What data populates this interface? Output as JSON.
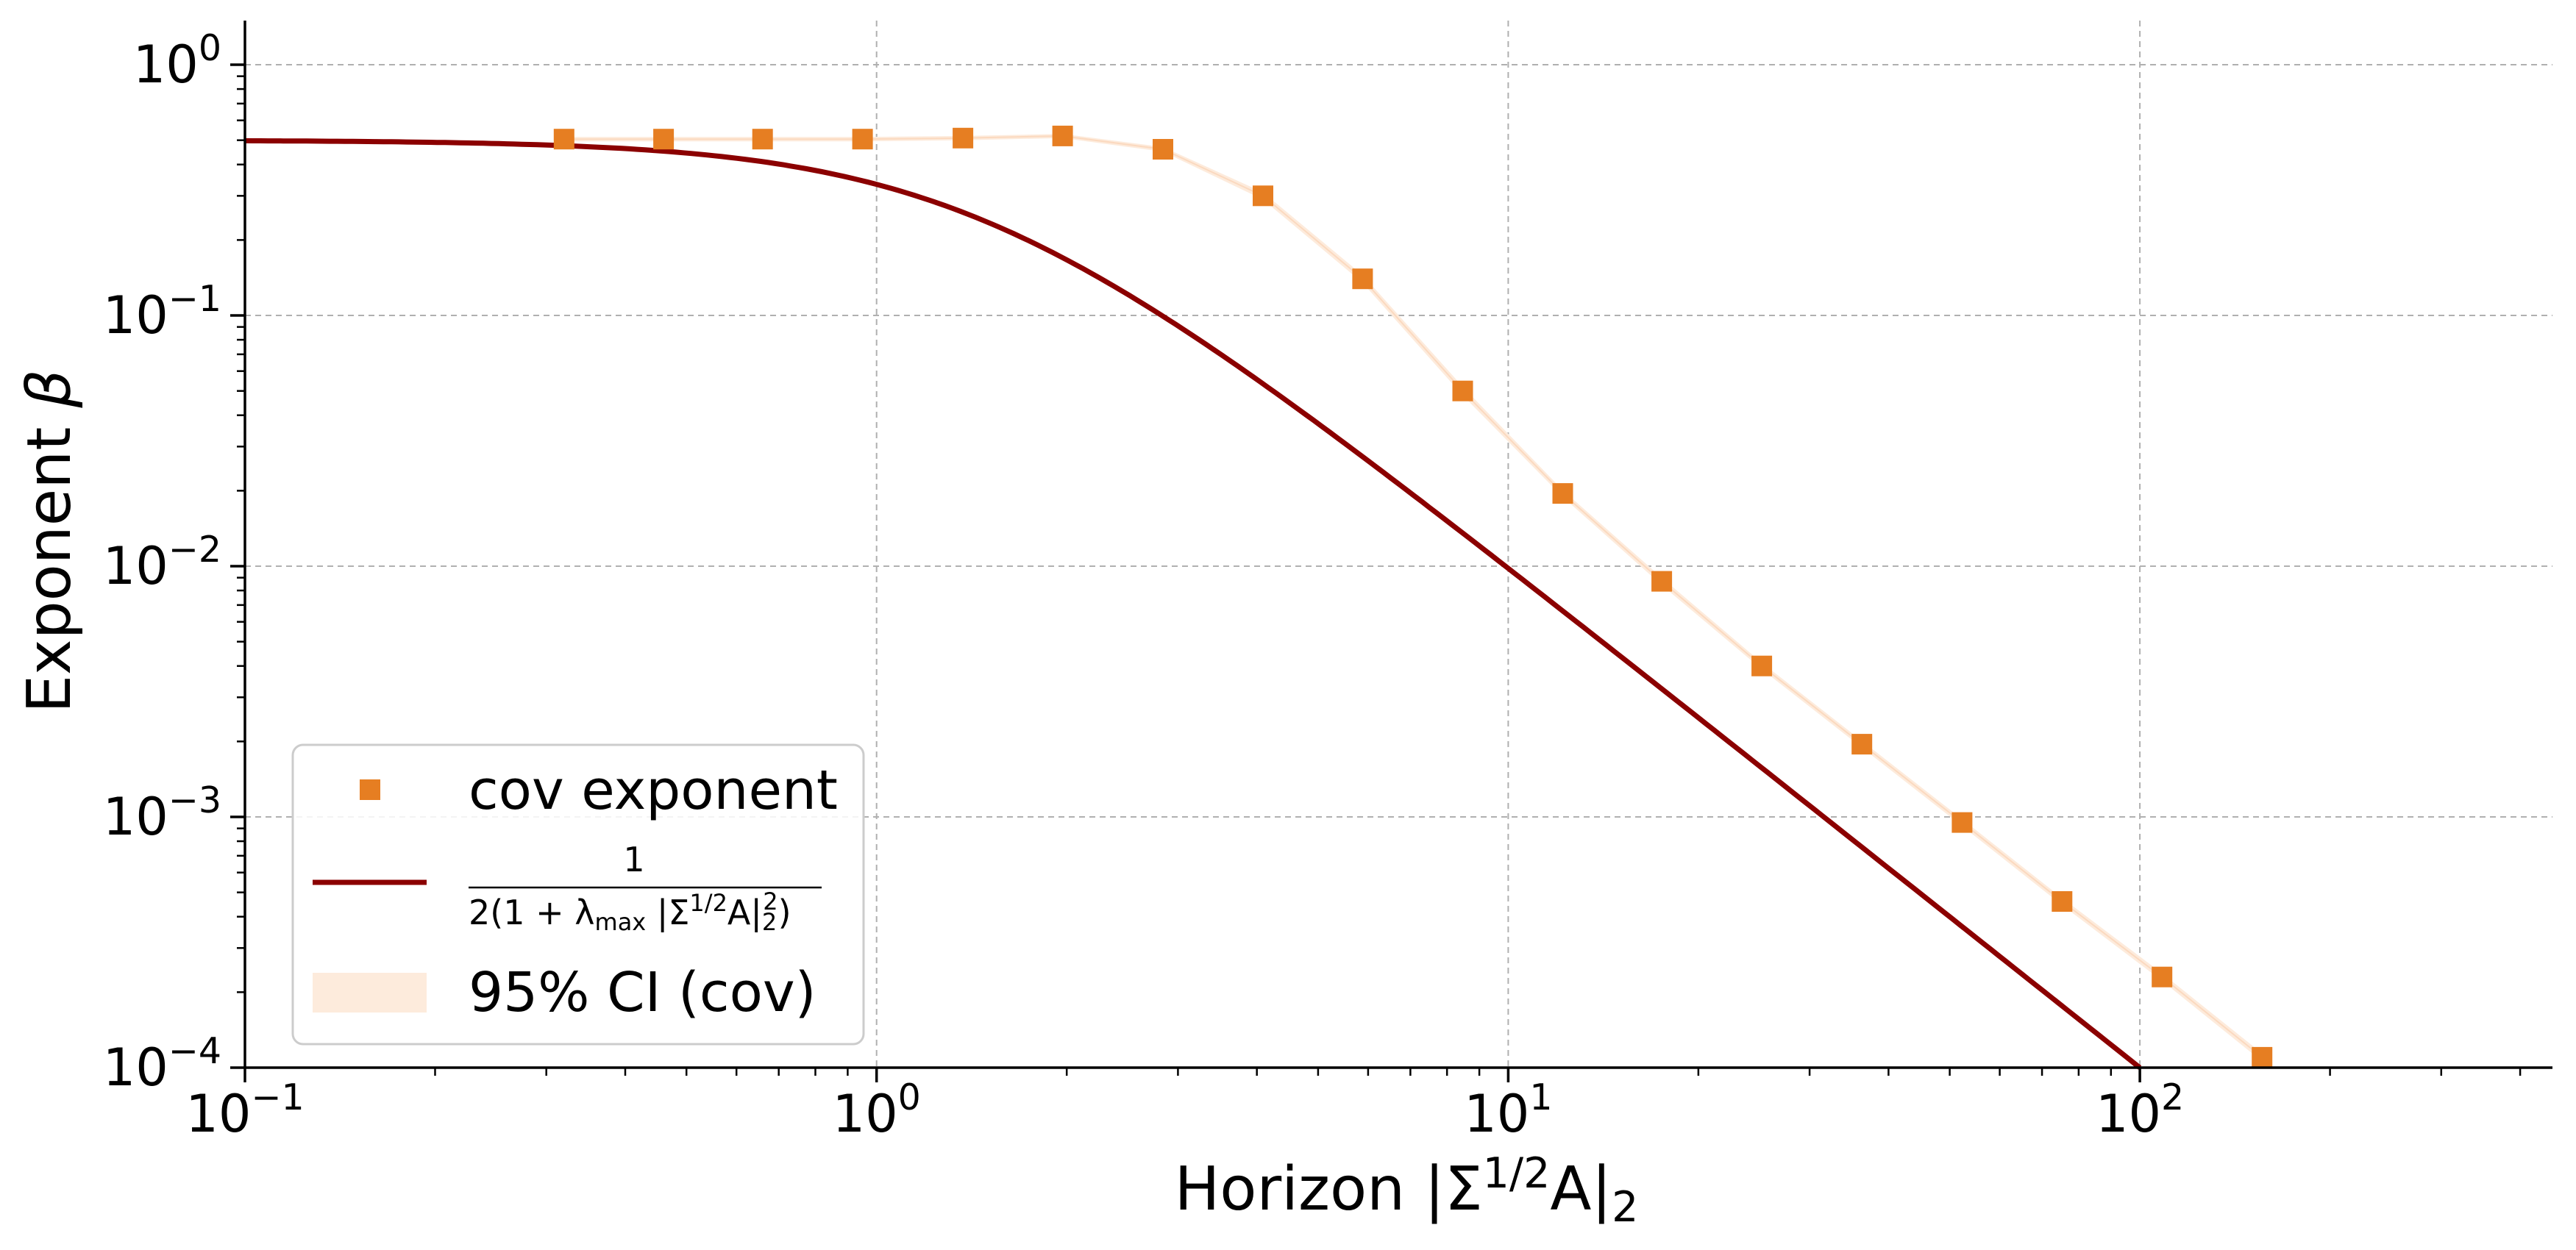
{
  "chart_data": {
    "type": "scatter",
    "xscale": "log",
    "yscale": "log",
    "xlim": [
      0.1,
      450
    ],
    "ylim": [
      0.0001,
      1.5
    ],
    "xlabel": {
      "base": "Horizon |Σ",
      "sup": "1/2",
      "mid": "A|",
      "sub": "2"
    },
    "ylabel": {
      "text": "Exponent ",
      "symbol": "β"
    },
    "grid": true,
    "xticks": [
      {
        "base": "10",
        "exp": "−1",
        "value": 0.1
      },
      {
        "base": "10",
        "exp": "0",
        "value": 1
      },
      {
        "base": "10",
        "exp": "1",
        "value": 10
      },
      {
        "base": "10",
        "exp": "2",
        "value": 100
      }
    ],
    "yticks": [
      {
        "base": "10",
        "exp": "0",
        "value": 1
      },
      {
        "base": "10",
        "exp": "−1",
        "value": 0.1
      },
      {
        "base": "10",
        "exp": "−2",
        "value": 0.01
      },
      {
        "base": "10",
        "exp": "−3",
        "value": 0.001
      },
      {
        "base": "10",
        "exp": "−4",
        "value": 0.0001
      }
    ],
    "series": [
      {
        "name": "cov exponent",
        "kind": "markers",
        "color": "#e67e22",
        "x": [
          0.32,
          0.46,
          0.66,
          0.95,
          1.37,
          1.97,
          2.84,
          4.09,
          5.88,
          8.47,
          12.2,
          17.5,
          25.2,
          36.3,
          52.3,
          75.3,
          108.4,
          156.1
        ],
        "y": [
          0.505,
          0.505,
          0.505,
          0.505,
          0.51,
          0.52,
          0.46,
          0.3,
          0.14,
          0.05,
          0.0195,
          0.0087,
          0.004,
          0.00195,
          0.00095,
          0.00046,
          0.00023,
          0.00011
        ]
      },
      {
        "name": "1 / 2(1 + λmax |Σ1/2A|22)",
        "kind": "line",
        "color": "#8b0000",
        "formula": "0.5 / (1 + 0.5 * x^2)"
      },
      {
        "name": "95% CI (cov)",
        "kind": "band",
        "color": "#fdebdc",
        "x": [
          0.32,
          0.46,
          0.66,
          0.95,
          1.37,
          1.97,
          2.84,
          4.09,
          5.88,
          8.47,
          12.2,
          17.5,
          25.2,
          36.3,
          52.3,
          75.3,
          108.4,
          156.1
        ],
        "low": [
          0.495,
          0.495,
          0.495,
          0.495,
          0.5,
          0.51,
          0.45,
          0.29,
          0.135,
          0.048,
          0.0189,
          0.0084,
          0.00388,
          0.00189,
          0.00092,
          0.000445,
          0.000222,
          0.000106
        ],
        "high": [
          0.515,
          0.515,
          0.515,
          0.515,
          0.52,
          0.53,
          0.47,
          0.31,
          0.145,
          0.052,
          0.0201,
          0.009,
          0.00412,
          0.00201,
          0.00098,
          0.000475,
          0.000238,
          0.000114
        ]
      }
    ],
    "legend": {
      "placement": "lower-left",
      "entries": [
        {
          "label": "cov exponent"
        },
        {
          "num": "1",
          "den_pre": "2",
          "den_mid": "1 + λ",
          "den_sub": "max",
          "den_abs": " |Σ",
          "den_sup": "1/2",
          "den_A": "A|",
          "den_sub2": "2",
          "den_sup2": "2"
        },
        {
          "label": "95% CI (cov)"
        }
      ]
    }
  }
}
